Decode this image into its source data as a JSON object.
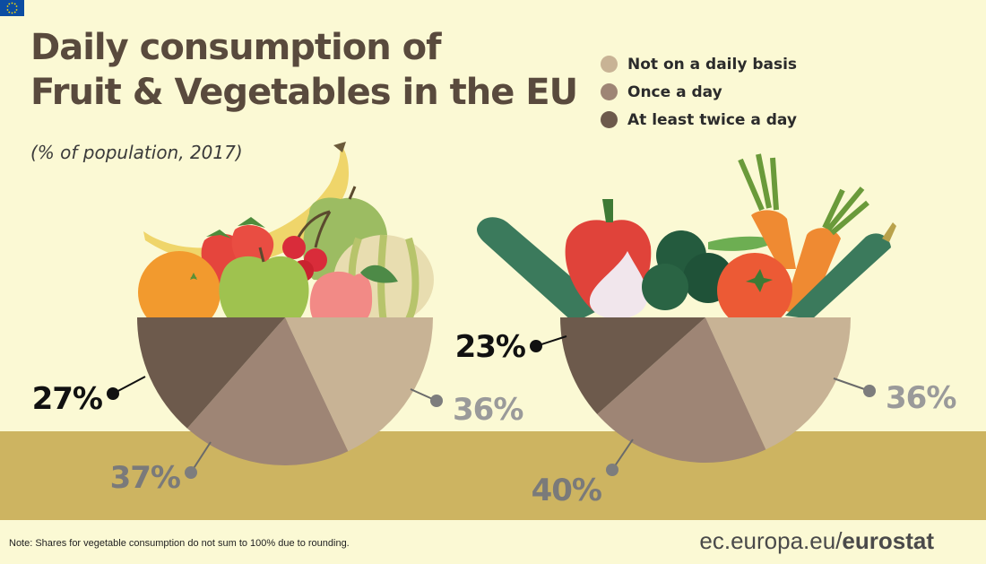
{
  "title_lines": [
    "Daily consumption of",
    "Fruit & Vegetables in the EU"
  ],
  "subtitle": "(% of population, 2017)",
  "legend": [
    {
      "label": "Not on a daily basis",
      "color": "#c8b395"
    },
    {
      "label": "Once a day",
      "color": "#9e8575"
    },
    {
      "label": "At least twice a day",
      "color": "#6d5a4c"
    }
  ],
  "chart_data": [
    {
      "type": "pie",
      "name": "",
      "categories": [
        "Not on a daily basis",
        "Once a day",
        "At least twice a day"
      ],
      "values": [
        36,
        37,
        27
      ],
      "labels": [
        "36%",
        "37%",
        "27%"
      ]
    },
    {
      "type": "pie",
      "name": "",
      "categories": [
        "Not on a daily basis",
        "Once a day",
        "At least twice a day"
      ],
      "values": [
        36,
        40,
        23
      ],
      "labels": [
        "36%",
        "40%",
        "23%"
      ]
    }
  ],
  "footer": {
    "note": "Note: Shares for vegetable consumption do not sum to 100% due to rounding.",
    "source_domain": "ec.europa.eu/",
    "source_brand": "eurostat",
    "flag_icon": "eu-flag-icon"
  }
}
